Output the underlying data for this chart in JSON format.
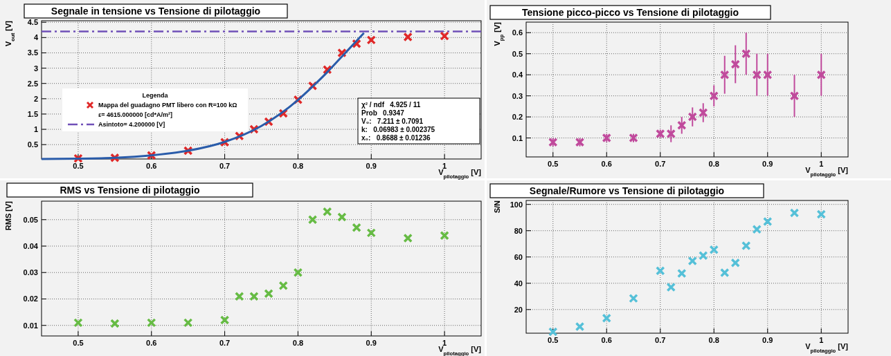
{
  "chart_data": [
    {
      "type": "scatter",
      "title": "Segnale in tensione vs Tensione di pilotaggio",
      "xlabel": "V$_{pilotaggio}$ [V]",
      "ylabel": "V$_{out}$ [V]",
      "xlim": [
        0.45,
        1.05
      ],
      "xticks": [
        0.5,
        0.6,
        0.7,
        0.8,
        0.9,
        1
      ],
      "ylim": [
        0.03,
        4.55
      ],
      "yticks": [
        0.5,
        1,
        1.5,
        2,
        2.5,
        3,
        3.5,
        4,
        4.5
      ],
      "grid": true,
      "marker": "cross",
      "legend": "left",
      "legend_title": "Legenda",
      "x": [
        0.5,
        0.55,
        0.6,
        0.65,
        0.7,
        0.72,
        0.74,
        0.76,
        0.78,
        0.8,
        0.82,
        0.84,
        0.86,
        0.88,
        0.9,
        0.95,
        1.0
      ],
      "series": [
        {
          "name": "Mappa del guadagno PMT libero con R=100 kΩ",
          "color": "#e02828",
          "values": [
            0.05,
            0.07,
            0.15,
            0.3,
            0.58,
            0.78,
            1.0,
            1.25,
            1.52,
            1.97,
            2.42,
            2.95,
            3.5,
            3.8,
            3.92,
            4.02,
            4.05
          ]
        },
        {
          "type": "line",
          "marker": "none",
          "color": "#2a5caa",
          "x": [
            0.45,
            0.5,
            0.55,
            0.6,
            0.65,
            0.7,
            0.75,
            0.8,
            0.82,
            0.84,
            0.86,
            0.89
          ],
          "values": [
            0.03,
            0.04,
            0.07,
            0.15,
            0.3,
            0.59,
            1.11,
            1.96,
            2.4,
            2.87,
            3.38,
            4.15
          ]
        }
      ],
      "ref_lines": [
        {
          "axis": "y",
          "value": 4.2,
          "label": "Asintoto= 4.200000 [V]",
          "color": "#7050b8",
          "line_style": "dashed"
        }
      ],
      "annotations": [
        "ε= 4615.000000 [cd*A/m²]",
        "χ² / ndf   4.925 / 11",
        "Prob   0.9347",
        "V₀:   7.211 ± 0.7091",
        "k:   0.06983 ± 0.002375",
        "x₀:   0.8688 ± 0.01236"
      ]
    },
    {
      "type": "scatter",
      "title": "Tensione picco-picco vs Tensione di pilotaggio",
      "xlabel": "V$_{pilotaggio}$ [V]",
      "ylabel": "V$_{pp}$ [V]",
      "xlim": [
        0.45,
        1.05
      ],
      "xticks": [
        0.5,
        0.6,
        0.7,
        0.8,
        0.9,
        1
      ],
      "ylim": [
        0.01,
        0.65
      ],
      "yticks": [
        0.1,
        0.2,
        0.3,
        0.4,
        0.5,
        0.6
      ],
      "grid": true,
      "marker": "cross",
      "x": [
        0.5,
        0.55,
        0.6,
        0.65,
        0.7,
        0.72,
        0.74,
        0.76,
        0.78,
        0.8,
        0.82,
        0.84,
        0.86,
        0.88,
        0.9,
        0.95,
        1.0
      ],
      "series": [
        {
          "color": "#c04a9c",
          "values": [
            0.08,
            0.08,
            0.1,
            0.1,
            0.12,
            0.12,
            0.16,
            0.2,
            0.22,
            0.3,
            0.4,
            0.45,
            0.5,
            0.4,
            0.4,
            0.3,
            0.4
          ],
          "errors": [
            0.02,
            0.02,
            0.02,
            0.02,
            0.02,
            0.04,
            0.04,
            0.045,
            0.045,
            0.05,
            0.09,
            0.09,
            0.1,
            0.1,
            0.1,
            0.1,
            0.1
          ]
        }
      ]
    },
    {
      "type": "scatter",
      "title": "RMS vs Tensione di pilotaggio",
      "xlabel": "V$_{pilotaggio}$ [V]",
      "ylabel": "RMS [V]",
      "xlim": [
        0.45,
        1.05
      ],
      "xticks": [
        0.5,
        0.6,
        0.7,
        0.8,
        0.9,
        1
      ],
      "ylim": [
        0.006,
        0.057
      ],
      "yticks": [
        0.01,
        0.02,
        0.03,
        0.04,
        0.05
      ],
      "grid": true,
      "marker": "cross",
      "x": [
        0.5,
        0.55,
        0.6,
        0.65,
        0.7,
        0.72,
        0.74,
        0.76,
        0.78,
        0.8,
        0.82,
        0.84,
        0.86,
        0.88,
        0.9,
        0.95,
        1.0
      ],
      "series": [
        {
          "color": "#66bb44",
          "values": [
            0.011,
            0.0107,
            0.011,
            0.011,
            0.012,
            0.021,
            0.021,
            0.022,
            0.025,
            0.03,
            0.05,
            0.053,
            0.051,
            0.047,
            0.045,
            0.043,
            0.044
          ]
        }
      ]
    },
    {
      "type": "scatter",
      "title": "Segnale/Rumore vs Tensione di pilotaggio",
      "xlabel": "V$_{pilotaggio}$ [V]",
      "ylabel": "S/N",
      "xlim": [
        0.45,
        1.05
      ],
      "xticks": [
        0.5,
        0.6,
        0.7,
        0.8,
        0.9,
        1
      ],
      "ylim": [
        2,
        103
      ],
      "yticks": [
        20,
        40,
        60,
        80,
        100
      ],
      "grid": true,
      "marker": "cross",
      "x": [
        0.5,
        0.55,
        0.6,
        0.65,
        0.7,
        0.72,
        0.74,
        0.76,
        0.78,
        0.8,
        0.82,
        0.84,
        0.86,
        0.88,
        0.9,
        0.95,
        1.0
      ],
      "series": [
        {
          "color": "#55c0d8",
          "values": [
            3,
            7,
            13.5,
            28.5,
            49.5,
            37,
            47.5,
            57,
            61,
            65.5,
            48,
            55.5,
            68.5,
            81,
            87,
            93.5,
            92.5
          ]
        }
      ]
    }
  ]
}
